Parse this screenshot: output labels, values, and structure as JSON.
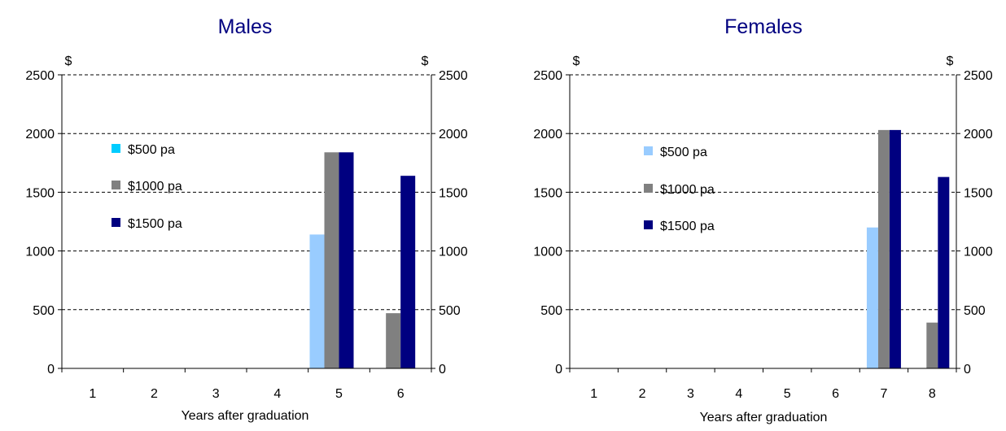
{
  "chart_data": [
    {
      "type": "bar",
      "title": "Males",
      "xlabel": "Years after graduation",
      "ylabel_left": "$",
      "ylabel_right": "$",
      "ylim": [
        0,
        2500
      ],
      "yticks": [
        0,
        500,
        1000,
        1500,
        2000,
        2500
      ],
      "categories": [
        "1",
        "2",
        "3",
        "4",
        "5",
        "6"
      ],
      "grid": true,
      "legend_position": "left",
      "series": [
        {
          "name": "$500 pa",
          "legend_color": "#00ccff",
          "color": "#99ccff",
          "values": [
            0,
            0,
            0,
            0,
            1140,
            0
          ]
        },
        {
          "name": "$1000 pa",
          "color": "#808080",
          "values": [
            0,
            0,
            0,
            0,
            1840,
            470
          ]
        },
        {
          "name": "$1500 pa",
          "color": "#000080",
          "values": [
            0,
            0,
            0,
            0,
            1840,
            1640
          ]
        }
      ]
    },
    {
      "type": "bar",
      "title": "Females",
      "xlabel": "Years after graduation",
      "ylabel_left": "$",
      "ylabel_right": "$",
      "ylim": [
        0,
        2500
      ],
      "yticks": [
        0,
        500,
        1000,
        1500,
        2000,
        2500
      ],
      "categories": [
        "1",
        "2",
        "3",
        "4",
        "5",
        "6",
        "7",
        "8"
      ],
      "grid": true,
      "legend_position": "left",
      "series": [
        {
          "name": "$500 pa",
          "legend_color": "#99ccff",
          "color": "#99ccff",
          "values": [
            0,
            0,
            0,
            0,
            0,
            0,
            1200,
            0
          ]
        },
        {
          "name": "$1000 pa",
          "color": "#808080",
          "values": [
            0,
            0,
            0,
            0,
            0,
            0,
            2030,
            390
          ]
        },
        {
          "name": "$1500 pa",
          "color": "#000080",
          "values": [
            0,
            0,
            0,
            0,
            0,
            0,
            2030,
            1630
          ]
        }
      ]
    }
  ],
  "colors": {
    "title": "#000080",
    "text": "#000000"
  }
}
